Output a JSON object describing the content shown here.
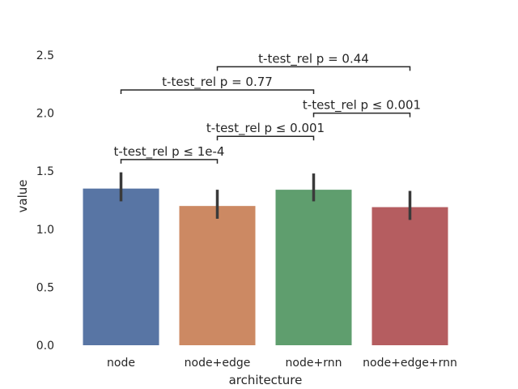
{
  "chart_data": {
    "type": "bar",
    "xlabel": "architecture",
    "ylabel": "value",
    "ylim": [
      0,
      2.5
    ],
    "yticks": [
      0.0,
      0.5,
      1.0,
      1.5,
      2.0,
      2.5
    ],
    "ytick_labels": [
      "0.0",
      "0.5",
      "1.0",
      "1.5",
      "2.0",
      "2.5"
    ],
    "grid": false,
    "categories": [
      "node",
      "node+edge",
      "node+rnn",
      "node+edge+rnn"
    ],
    "values": [
      1.35,
      1.2,
      1.34,
      1.19
    ],
    "ci_low": [
      1.24,
      1.09,
      1.24,
      1.08
    ],
    "ci_high": [
      1.49,
      1.34,
      1.48,
      1.33
    ],
    "colors": [
      "#5875a4",
      "#cc8963",
      "#5f9e6e",
      "#b55d60"
    ],
    "annotations": [
      {
        "from": 0,
        "to": 1,
        "y": 1.6,
        "text": "t-test_rel p ≤ 1e-4"
      },
      {
        "from": 1,
        "to": 2,
        "y": 1.8,
        "text": "t-test_rel p ≤ 0.001"
      },
      {
        "from": 2,
        "to": 3,
        "y": 2.0,
        "text": "t-test_rel p ≤ 0.001"
      },
      {
        "from": 0,
        "to": 2,
        "y": 2.2,
        "text": "t-test_rel p = 0.77"
      },
      {
        "from": 1,
        "to": 3,
        "y": 2.4,
        "text": "t-test_rel p = 0.44"
      }
    ]
  }
}
